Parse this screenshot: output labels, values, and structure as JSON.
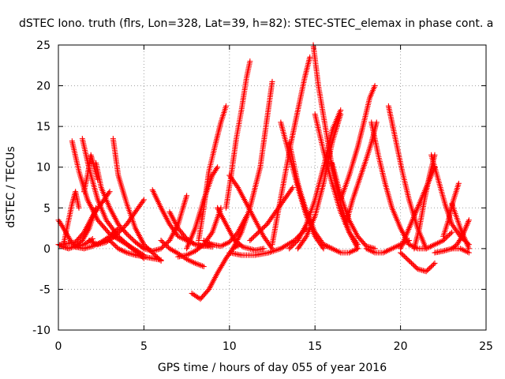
{
  "chart_data": {
    "type": "scatter",
    "title": "dSTEC Iono. truth (flrs, Lon=328, Lat=39, h=82): STEC-STEC_elemax in phase cont. a",
    "xlabel": "GPS time / hours of day 055 of year 2016",
    "ylabel": "dSTEC  / TECUs",
    "xlim": [
      0,
      25
    ],
    "ylim": [
      -10,
      25
    ],
    "xticks": [
      "0",
      "5",
      "10",
      "15",
      "20",
      "25"
    ],
    "yticks": [
      "-10",
      "-5",
      "0",
      "5",
      "10",
      "15",
      "20",
      "25"
    ],
    "xtick_values": [
      0,
      5,
      10,
      15,
      20,
      25
    ],
    "ytick_values": [
      -10,
      -5,
      0,
      5,
      10,
      15,
      20,
      25
    ],
    "grid": true,
    "marker": "plus",
    "color": "#ff0000",
    "arcs": [
      {
        "x": [
          0.0,
          0.3,
          0.7,
          1.0,
          1.5,
          2.0
        ],
        "y": [
          3.5,
          2.5,
          1.0,
          0.2,
          0.5,
          1.2
        ]
      },
      {
        "x": [
          0.0,
          0.3,
          0.6,
          1.0,
          1.4,
          1.8,
          2.2
        ],
        "y": [
          0.5,
          0.2,
          0.0,
          0.3,
          1.0,
          2.5,
          5.0
        ]
      },
      {
        "x": [
          0.1,
          0.5,
          1.0,
          1.5,
          2.0,
          2.5,
          3.0
        ],
        "y": [
          0.5,
          0.6,
          0.8,
          2.0,
          4.0,
          5.5,
          7.0
        ]
      },
      {
        "x": [
          0.3,
          0.5,
          0.8,
          1.0,
          1.2
        ],
        "y": [
          0.5,
          2.5,
          5.5,
          7.0,
          5.0
        ]
      },
      {
        "x": [
          0.8,
          1.2,
          1.7,
          2.3,
          3.0,
          4.0,
          5.0
        ],
        "y": [
          13.2,
          9.5,
          6.0,
          3.5,
          1.8,
          0.5,
          -0.8
        ]
      },
      {
        "x": [
          1.4,
          1.8,
          2.3,
          2.8,
          3.5,
          4.2,
          5.0
        ],
        "y": [
          13.5,
          9.8,
          6.0,
          3.5,
          1.5,
          0.2,
          -1.2
        ]
      },
      {
        "x": [
          1.5,
          1.7,
          1.9,
          2.1,
          2.3
        ],
        "y": [
          7.0,
          9.0,
          11.5,
          10.0,
          8.5
        ]
      },
      {
        "x": [
          2.2,
          2.5,
          3.0,
          3.5,
          4.0,
          4.5,
          5.0
        ],
        "y": [
          10.5,
          7.5,
          5.0,
          3.0,
          1.8,
          0.8,
          0.0
        ]
      },
      {
        "x": [
          1.0,
          1.5,
          2.0,
          2.5,
          3.0,
          3.5
        ],
        "y": [
          0.2,
          0.0,
          0.3,
          0.8,
          1.5,
          2.5
        ]
      },
      {
        "x": [
          1.8,
          2.3,
          2.8,
          3.3,
          4.0,
          4.5,
          5.0
        ],
        "y": [
          1.0,
          0.5,
          0.8,
          1.5,
          3.0,
          4.5,
          6.0
        ]
      },
      {
        "x": [
          3.2,
          3.5,
          4.0,
          4.5,
          5.0,
          5.5,
          6.0
        ],
        "y": [
          13.5,
          9.0,
          5.5,
          2.5,
          0.5,
          -0.5,
          -1.5
        ]
      },
      {
        "x": [
          3.0,
          3.5,
          4.0,
          4.5,
          5.0,
          5.5,
          6.0
        ],
        "y": [
          1.0,
          0.0,
          -0.5,
          -0.8,
          -1.0,
          -1.2,
          -1.4
        ]
      },
      {
        "x": [
          5.5,
          6.0,
          6.5,
          7.0,
          8.0,
          9.0
        ],
        "y": [
          7.2,
          5.0,
          3.0,
          1.5,
          0.5,
          0.2
        ]
      },
      {
        "x": [
          5.0,
          5.5,
          6.0,
          6.5,
          7.0,
          7.5
        ],
        "y": [
          0.0,
          -0.3,
          0.0,
          1.0,
          3.0,
          6.5
        ]
      },
      {
        "x": [
          6.5,
          7.0,
          7.5,
          8.0,
          8.5,
          9.0
        ],
        "y": [
          4.5,
          2.5,
          1.2,
          0.5,
          0.3,
          0.5
        ]
      },
      {
        "x": [
          6.0,
          6.5,
          7.0,
          7.5,
          8.0,
          8.5
        ],
        "y": [
          1.0,
          0.0,
          -0.6,
          -1.3,
          -1.8,
          -2.2
        ]
      },
      {
        "x": [
          7.0,
          7.5,
          8.0,
          8.5,
          9.0,
          9.5
        ],
        "y": [
          -1.0,
          -0.8,
          -0.3,
          0.5,
          2.0,
          5.0
        ]
      },
      {
        "x": [
          7.5,
          8.0,
          8.5,
          9.0,
          9.3
        ],
        "y": [
          0.0,
          2.5,
          6.0,
          9.0,
          10.0
        ]
      },
      {
        "x": [
          8.2,
          8.5,
          8.8,
          9.2,
          9.5,
          9.8
        ],
        "y": [
          1.0,
          5.0,
          9.5,
          13.0,
          15.5,
          17.5
        ]
      },
      {
        "x": [
          7.8,
          8.3,
          8.8,
          9.3,
          9.8,
          10.2,
          10.6
        ],
        "y": [
          -5.5,
          -6.2,
          -5.0,
          -3.0,
          -1.2,
          0.0,
          0.5
        ]
      },
      {
        "x": [
          8.5,
          9.0,
          9.5,
          10.0,
          10.5,
          11.0
        ],
        "y": [
          1.0,
          0.5,
          0.3,
          0.8,
          2.0,
          4.0
        ]
      },
      {
        "x": [
          9.3,
          9.8,
          10.3,
          10.8,
          11.5,
          12.0
        ],
        "y": [
          5.0,
          3.0,
          1.0,
          0.2,
          -0.2,
          0.0
        ]
      },
      {
        "x": [
          9.8,
          10.1,
          10.4,
          10.7,
          11.0,
          11.2
        ],
        "y": [
          5.0,
          9.0,
          13.5,
          17.0,
          21.0,
          23.0
        ]
      },
      {
        "x": [
          10.0,
          10.5,
          11.0,
          11.5,
          12.0,
          12.5
        ],
        "y": [
          9.0,
          7.5,
          5.5,
          3.5,
          1.5,
          0.0
        ]
      },
      {
        "x": [
          10.2,
          10.7,
          11.2,
          11.8,
          12.2,
          12.5
        ],
        "y": [
          0.0,
          2.0,
          5.0,
          10.0,
          16.0,
          20.5
        ]
      },
      {
        "x": [
          10.0,
          10.7,
          11.5,
          12.3,
          13.0,
          13.8,
          14.5
        ],
        "y": [
          -0.5,
          -0.8,
          -0.8,
          -0.5,
          0.0,
          1.0,
          2.5
        ]
      },
      {
        "x": [
          11.2,
          11.7,
          12.2,
          12.7,
          13.2,
          13.7
        ],
        "y": [
          1.0,
          2.0,
          3.0,
          4.5,
          6.0,
          7.5
        ]
      },
      {
        "x": [
          12.5,
          12.8,
          13.2,
          13.6,
          14.0,
          14.4,
          14.7
        ],
        "y": [
          0.5,
          4.0,
          8.5,
          13.0,
          17.0,
          21.0,
          23.5
        ]
      },
      {
        "x": [
          13.0,
          13.5,
          14.0,
          14.5,
          15.0,
          15.5
        ],
        "y": [
          15.5,
          11.5,
          7.5,
          4.0,
          1.5,
          0.0
        ]
      },
      {
        "x": [
          13.5,
          14.0,
          14.5,
          15.0,
          15.5,
          16.0
        ],
        "y": [
          13.0,
          8.0,
          4.5,
          2.0,
          0.5,
          0.0
        ]
      },
      {
        "x": [
          13.5,
          14.0,
          14.5,
          15.0,
          15.5,
          16.0,
          16.5
        ],
        "y": [
          0.0,
          1.0,
          3.0,
          6.0,
          10.0,
          14.5,
          17.0
        ]
      },
      {
        "x": [
          14.0,
          14.5,
          15.0,
          15.5,
          16.0,
          16.5
        ],
        "y": [
          0.0,
          1.5,
          4.0,
          8.0,
          13.0,
          16.5
        ]
      },
      {
        "x": [
          14.9,
          15.2,
          15.6,
          16.0,
          16.5,
          17.0,
          17.5
        ],
        "y": [
          25.0,
          20.0,
          15.0,
          10.0,
          5.5,
          2.0,
          0.0
        ]
      },
      {
        "x": [
          15.0,
          15.5,
          16.0,
          16.5,
          17.0,
          17.5
        ],
        "y": [
          16.5,
          12.0,
          8.0,
          4.5,
          2.0,
          0.5
        ]
      },
      {
        "x": [
          15.5,
          16.0,
          16.5,
          17.0,
          17.5
        ],
        "y": [
          0.5,
          0.0,
          -0.5,
          -0.5,
          0.0
        ]
      },
      {
        "x": [
          16.0,
          16.5,
          17.0,
          17.5,
          18.0,
          18.5
        ],
        "y": [
          10.5,
          6.5,
          3.5,
          1.5,
          0.3,
          0.0
        ]
      },
      {
        "x": [
          16.5,
          17.0,
          17.5,
          17.8,
          18.2,
          18.5
        ],
        "y": [
          6.0,
          9.0,
          12.5,
          15.0,
          18.5,
          20.0
        ]
      },
      {
        "x": [
          16.8,
          17.2,
          17.6,
          18.0,
          18.3,
          18.6
        ],
        "y": [
          3.0,
          6.0,
          8.5,
          11.0,
          13.0,
          15.5
        ]
      },
      {
        "x": [
          18.3,
          18.7,
          19.1,
          19.5,
          20.0,
          20.5
        ],
        "y": [
          15.5,
          11.5,
          8.0,
          5.0,
          2.5,
          0.5
        ]
      },
      {
        "x": [
          18.0,
          18.5,
          19.0,
          19.5,
          20.0,
          20.5
        ],
        "y": [
          0.0,
          -0.5,
          -0.5,
          0.0,
          0.5,
          1.0
        ]
      },
      {
        "x": [
          19.3,
          19.7,
          20.1,
          20.5,
          21.0,
          21.5
        ],
        "y": [
          17.5,
          13.5,
          9.5,
          6.0,
          2.5,
          0.0
        ]
      },
      {
        "x": [
          20.0,
          20.5,
          21.0,
          21.5,
          22.0
        ],
        "y": [
          -0.5,
          -1.5,
          -2.5,
          -2.8,
          -1.8
        ]
      },
      {
        "x": [
          20.0,
          20.4,
          20.8,
          21.2,
          21.6,
          22.0
        ],
        "y": [
          0.0,
          2.0,
          4.0,
          6.0,
          8.0,
          10.0
        ]
      },
      {
        "x": [
          20.8,
          21.1,
          21.4,
          21.7,
          22.0
        ],
        "y": [
          0.0,
          2.5,
          6.0,
          9.0,
          11.5
        ]
      },
      {
        "x": [
          21.8,
          22.2,
          22.6,
          23.0,
          23.5,
          24.0
        ],
        "y": [
          11.5,
          8.5,
          5.5,
          3.0,
          1.5,
          0.5
        ]
      },
      {
        "x": [
          20.5,
          21.0,
          21.5,
          22.0,
          22.5,
          23.0
        ],
        "y": [
          0.5,
          0.0,
          0.0,
          0.5,
          1.0,
          2.0
        ]
      },
      {
        "x": [
          22.5,
          22.8,
          23.1,
          23.4
        ],
        "y": [
          1.5,
          3.5,
          6.0,
          8.0
        ]
      },
      {
        "x": [
          23.0,
          23.3,
          23.6,
          23.8,
          24.0
        ],
        "y": [
          0.0,
          0.5,
          1.5,
          2.5,
          3.5
        ]
      },
      {
        "x": [
          22.0,
          22.5,
          23.0,
          23.5,
          24.0
        ],
        "y": [
          -0.5,
          -0.3,
          0.0,
          0.0,
          -0.5
        ]
      },
      {
        "x": [
          23.0,
          23.5,
          24.0
        ],
        "y": [
          5.5,
          2.5,
          0.0
        ]
      }
    ]
  }
}
